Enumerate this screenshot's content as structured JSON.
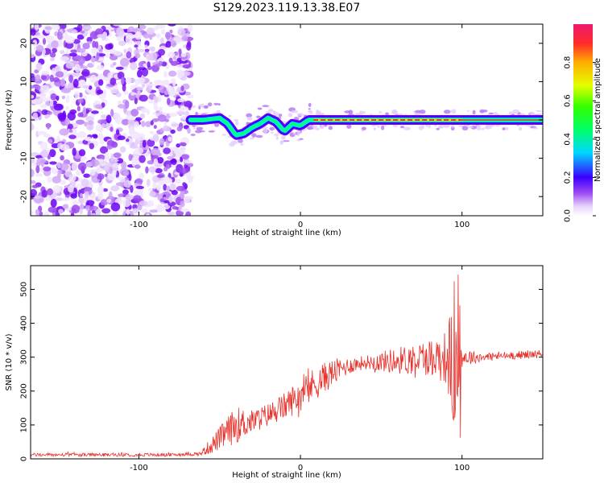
{
  "title": "S129.2023.119.13.38.E07",
  "chart_data": [
    {
      "type": "heatmap",
      "xlabel": "Height of straight line (km)",
      "ylabel": "Frequency (Hz)",
      "xlim": [
        -167,
        150
      ],
      "ylim": [
        -25,
        25
      ],
      "xticks": [
        -100,
        0,
        100
      ],
      "yticks": [
        -20,
        -10,
        0,
        10,
        20
      ],
      "colorbar": {
        "label": "Normalized spectral amplitude",
        "range": [
          0.0,
          1.0
        ],
        "ticks": [
          0.0,
          0.2,
          0.4,
          0.6,
          0.8
        ]
      },
      "noise_region_x": [
        -167,
        -68
      ],
      "ridge": {
        "x": [
          -68,
          -60,
          -50,
          -45,
          -40,
          -35,
          -30,
          -25,
          -20,
          -15,
          -10,
          -5,
          0,
          5,
          10,
          100,
          150
        ],
        "frequency": [
          0,
          0,
          0.5,
          -1,
          -4,
          -3.5,
          -2,
          -1,
          0.5,
          -0.5,
          -3,
          -1,
          -1.5,
          0,
          0,
          0,
          0
        ]
      },
      "peak_amplitude_region_x": [
        8,
        100
      ]
    },
    {
      "type": "line",
      "xlabel": "Height of straight line (km)",
      "ylabel": "SNR (10 * v/v)",
      "xlim": [
        -167,
        150
      ],
      "ylim": [
        0,
        570
      ],
      "xticks": [
        -100,
        0,
        100
      ],
      "yticks": [
        0,
        100,
        200,
        300,
        400,
        500
      ],
      "color": "#e8302a",
      "x": [
        -167,
        -120,
        -80,
        -62,
        -55,
        -45,
        -40,
        -30,
        -20,
        -10,
        0,
        10,
        20,
        30,
        40,
        60,
        80,
        90,
        95,
        100,
        110,
        130,
        150
      ],
      "snr_trend": [
        12,
        12,
        12,
        15,
        40,
        80,
        100,
        110,
        130,
        155,
        190,
        225,
        255,
        275,
        285,
        290,
        300,
        300,
        280,
        300,
        300,
        305,
        310
      ],
      "snr_spread": [
        5,
        5,
        5,
        6,
        25,
        45,
        55,
        35,
        35,
        40,
        50,
        50,
        40,
        25,
        20,
        40,
        55,
        80,
        200,
        30,
        15,
        12,
        12
      ]
    }
  ]
}
